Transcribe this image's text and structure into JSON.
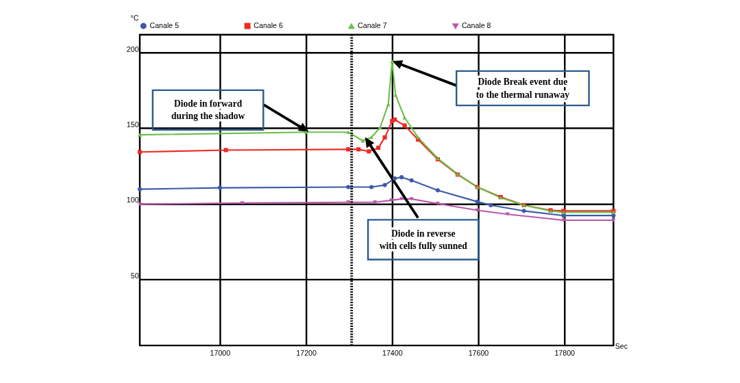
{
  "chart_data": {
    "type": "line",
    "xlabel": "Sec",
    "ylabel": "°C",
    "xlim": [
      16814,
      17914
    ],
    "ylim": [
      6,
      212
    ],
    "xticks": [
      17000,
      17200,
      17400,
      17600,
      17800
    ],
    "yticks": [
      50,
      100,
      150,
      200
    ],
    "grid": true,
    "legend": "top",
    "line_style": "solid",
    "series": [
      {
        "name": "Canale 5",
        "color": "#3c5aa8",
        "marker": "circle",
        "x": [
          16814,
          17000,
          17298,
          17352,
          17383,
          17406,
          17422,
          17445,
          17506,
          17598,
          17629,
          17706,
          17798,
          17914
        ],
        "values": [
          109.6,
          110.5,
          111,
          111,
          112.3,
          116.7,
          117.5,
          115.4,
          108.8,
          101.3,
          99,
          95.2,
          92.1,
          92.1
        ]
      },
      {
        "name": "Canale 6",
        "color": "#ee2a24",
        "marker": "square",
        "x": [
          16814,
          17014,
          17298,
          17322,
          17346,
          17368,
          17383,
          17400,
          17406,
          17429,
          17460,
          17506,
          17552,
          17598,
          17652,
          17706,
          17768,
          17798,
          17914
        ],
        "values": [
          134.2,
          135.5,
          136,
          136,
          134.6,
          137,
          143.9,
          154.8,
          155.7,
          151.8,
          142.5,
          129.4,
          119.3,
          111,
          104.4,
          99,
          95.6,
          95.2,
          95.2
        ]
      },
      {
        "name": "Canale 7",
        "color": "#6cbf4a",
        "marker": "triangle",
        "x": [
          16814,
          17200,
          17298,
          17332,
          17352,
          17372,
          17391,
          17400,
          17408,
          17429,
          17460,
          17506,
          17552,
          17598,
          17652,
          17706,
          17768,
          17798,
          17914
        ],
        "values": [
          145.6,
          147.4,
          147.4,
          141.7,
          144,
          150.4,
          165.8,
          194.3,
          172,
          157,
          143.9,
          130,
          119.7,
          111,
          104,
          99,
          95.2,
          94.3,
          94.3
        ]
      },
      {
        "name": "Canale 8",
        "color": "#b857a8",
        "marker": "triangle-down",
        "x": [
          16814,
          17052,
          17298,
          17360,
          17398,
          17422,
          17445,
          17506,
          17598,
          17668,
          17798,
          17914
        ],
        "values": [
          99.6,
          100.4,
          100.9,
          100.9,
          102.2,
          103.1,
          103.1,
          100,
          95.6,
          93,
          89,
          89
        ]
      }
    ],
    "ref_lines": [
      {
        "axis": "x",
        "value": 17306,
        "color": "#000000",
        "line_style": "dotted"
      }
    ],
    "annotations": [
      "Diode in forward\nduring the shadow",
      "Diode Break event due\nto the thermal runaway",
      "Diode in reverse\nwith cells fully sunned"
    ]
  }
}
